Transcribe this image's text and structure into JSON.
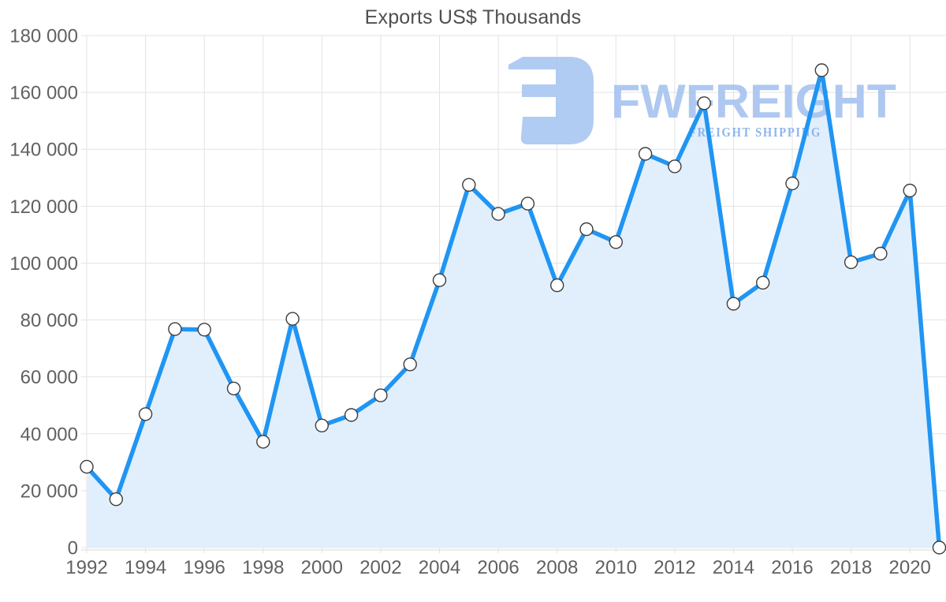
{
  "page": {
    "background": "#ffffff"
  },
  "chart_data": {
    "type": "area",
    "title": "Exports US$ Thousands",
    "x": [
      1992,
      1993,
      1994,
      1995,
      1996,
      1997,
      1998,
      1999,
      2000,
      2001,
      2002,
      2003,
      2004,
      2005,
      2006,
      2007,
      2008,
      2009,
      2010,
      2011,
      2012,
      2013,
      2014,
      2015,
      2016,
      2017,
      2018,
      2019,
      2020,
      2021
    ],
    "values": [
      28400,
      17000,
      46900,
      76800,
      76600,
      55900,
      37200,
      80400,
      42900,
      46600,
      53500,
      64400,
      94000,
      127500,
      117300,
      120900,
      92200,
      111900,
      107400,
      138400,
      134000,
      156200,
      85700,
      93100,
      128000,
      167800,
      100300,
      103300,
      125500,
      0
    ],
    "xlabel": "",
    "ylabel": "",
    "ylim": [
      0,
      180000
    ],
    "grid": true,
    "legend": "none",
    "x_tick_labels": [
      "1992",
      "1994",
      "1996",
      "1998",
      "2000",
      "2002",
      "2004",
      "2006",
      "2008",
      "2010",
      "2012",
      "2014",
      "2016",
      "2018",
      "2020"
    ],
    "y_ticks": [
      0,
      20000,
      40000,
      60000,
      80000,
      100000,
      120000,
      140000,
      160000,
      180000
    ],
    "y_tick_labels": [
      "0",
      "20 000",
      "40 000",
      "60 000",
      "80 000",
      "100 000",
      "120 000",
      "140 000",
      "160 000",
      "180 000"
    ],
    "line_color": "#2095f3",
    "fill_color": "#e1effc",
    "marker_fill": "#ffffff",
    "marker_stroke": "#3d3d3d",
    "grid_color": "#e3e3e3",
    "axis_line_color": "#d9d9d9",
    "label_color": "#616161",
    "title_color": "#4f4f4f"
  },
  "watermark": {
    "brand": "FWFREIGHT",
    "tagline": "FREIGHT SHIPPING",
    "brand_color": "#a6c3f0",
    "icon_color": "#a9c7f1",
    "tagline_color": "#83aeea"
  }
}
